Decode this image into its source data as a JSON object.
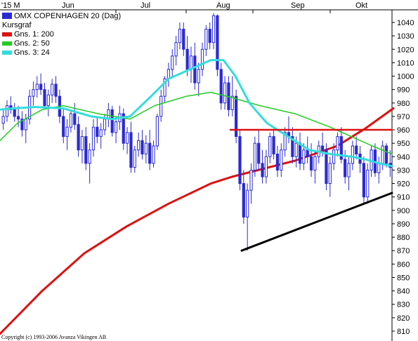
{
  "chart_data": {
    "type": "candlestick",
    "instrument": "OMX COPENHAGEN 20 (Dag)",
    "x_month_labels": [
      "'15 M",
      "Jun",
      "Jul",
      "Aug",
      "Sep",
      "Okt"
    ],
    "y_ticks": [
      810,
      820,
      830,
      840,
      850,
      860,
      870,
      880,
      890,
      900,
      910,
      920,
      930,
      940,
      950,
      960,
      970,
      980,
      990,
      1000,
      1010,
      1020,
      1030,
      1040
    ],
    "ylim": [
      805,
      1047
    ],
    "grid": false,
    "legend_placement": "top-left",
    "legend": [
      {
        "label": "OMX COPENHAGEN 20 (Dag)",
        "color": "#2a2ad2",
        "kind": "box"
      },
      {
        "label": "Kursgraf",
        "color": "",
        "kind": "text"
      },
      {
        "label": "Gns. 1: 200",
        "color": "#dd1111",
        "kind": "line"
      },
      {
        "label": "Gns. 2: 50",
        "color": "#22cc22",
        "kind": "line"
      },
      {
        "label": "Gns. 3: 24",
        "color": "#33dddd",
        "kind": "line"
      }
    ],
    "colors": {
      "candle": "#2a2ad2",
      "ma200": "#dd1111",
      "ma50": "#22cc22",
      "ma24": "#33dddd",
      "trendline": "#000000",
      "resistance": "#dd1111"
    },
    "candles": [
      [
        965,
        975,
        960,
        970
      ],
      [
        970,
        982,
        966,
        978
      ],
      [
        978,
        985,
        972,
        975
      ],
      [
        975,
        980,
        966,
        970
      ],
      [
        970,
        978,
        962,
        968
      ],
      [
        968,
        974,
        955,
        960
      ],
      [
        960,
        972,
        950,
        968
      ],
      [
        968,
        990,
        964,
        985
      ],
      [
        985,
        996,
        978,
        990
      ],
      [
        990,
        1000,
        984,
        994
      ],
      [
        994,
        1002,
        986,
        990
      ],
      [
        990,
        995,
        975,
        978
      ],
      [
        978,
        990,
        970,
        986
      ],
      [
        986,
        998,
        980,
        994
      ],
      [
        994,
        1000,
        980,
        985
      ],
      [
        985,
        990,
        965,
        970
      ],
      [
        970,
        976,
        950,
        955
      ],
      [
        955,
        968,
        945,
        962
      ],
      [
        962,
        975,
        958,
        972
      ],
      [
        972,
        980,
        960,
        964
      ],
      [
        964,
        970,
        940,
        945
      ],
      [
        945,
        960,
        935,
        955
      ],
      [
        955,
        962,
        930,
        935
      ],
      [
        935,
        950,
        920,
        945
      ],
      [
        945,
        968,
        940,
        962
      ],
      [
        962,
        970,
        950,
        955
      ],
      [
        955,
        965,
        946,
        960
      ],
      [
        960,
        972,
        956,
        968
      ],
      [
        968,
        980,
        962,
        975
      ],
      [
        975,
        978,
        955,
        958
      ],
      [
        958,
        970,
        950,
        966
      ],
      [
        966,
        978,
        960,
        972
      ],
      [
        972,
        976,
        945,
        950
      ],
      [
        950,
        962,
        942,
        958
      ],
      [
        958,
        966,
        928,
        932
      ],
      [
        932,
        948,
        928,
        945
      ],
      [
        945,
        958,
        940,
        952
      ],
      [
        952,
        960,
        938,
        942
      ],
      [
        942,
        956,
        935,
        950
      ],
      [
        950,
        960,
        930,
        935
      ],
      [
        935,
        952,
        932,
        948
      ],
      [
        948,
        972,
        945,
        970
      ],
      [
        970,
        990,
        966,
        985
      ],
      [
        985,
        1000,
        980,
        998
      ],
      [
        998,
        1010,
        992,
        1005
      ],
      [
        1005,
        1020,
        1000,
        1015
      ],
      [
        1015,
        1030,
        1008,
        1025
      ],
      [
        1025,
        1040,
        1020,
        1035
      ],
      [
        1035,
        1040,
        1015,
        1020
      ],
      [
        1020,
        1030,
        1000,
        1005
      ],
      [
        1005,
        1022,
        995,
        1015
      ],
      [
        1015,
        1025,
        990,
        995
      ],
      [
        995,
        1010,
        985,
        1005
      ],
      [
        1005,
        1025,
        1000,
        1020
      ],
      [
        1020,
        1038,
        1015,
        1035
      ],
      [
        1035,
        1040,
        1020,
        1025
      ],
      [
        1025,
        1047,
        1020,
        1045
      ],
      [
        1045,
        1046,
        1000,
        1005
      ],
      [
        1005,
        1010,
        975,
        980
      ],
      [
        980,
        1000,
        975,
        995
      ],
      [
        995,
        1000,
        970,
        975
      ],
      [
        975,
        1000,
        970,
        985
      ],
      [
        985,
        990,
        950,
        955
      ],
      [
        955,
        960,
        915,
        920
      ],
      [
        920,
        930,
        890,
        895
      ],
      [
        895,
        920,
        870,
        915
      ],
      [
        915,
        935,
        905,
        930
      ],
      [
        930,
        955,
        925,
        950
      ],
      [
        950,
        960,
        930,
        935
      ],
      [
        935,
        945,
        920,
        925
      ],
      [
        925,
        945,
        920,
        940
      ],
      [
        940,
        958,
        935,
        955
      ],
      [
        955,
        960,
        938,
        942
      ],
      [
        942,
        948,
        925,
        930
      ],
      [
        930,
        950,
        925,
        945
      ],
      [
        945,
        962,
        940,
        958
      ],
      [
        958,
        970,
        950,
        955
      ],
      [
        955,
        962,
        935,
        940
      ],
      [
        940,
        955,
        932,
        950
      ],
      [
        950,
        958,
        930,
        935
      ],
      [
        935,
        950,
        930,
        945
      ],
      [
        945,
        955,
        935,
        940
      ],
      [
        940,
        950,
        925,
        930
      ],
      [
        930,
        945,
        920,
        940
      ],
      [
        940,
        952,
        935,
        948
      ],
      [
        948,
        958,
        940,
        945
      ],
      [
        945,
        950,
        915,
        920
      ],
      [
        920,
        940,
        910,
        935
      ],
      [
        935,
        950,
        930,
        945
      ],
      [
        945,
        958,
        940,
        955
      ],
      [
        955,
        962,
        935,
        938
      ],
      [
        938,
        945,
        920,
        925
      ],
      [
        925,
        940,
        915,
        935
      ],
      [
        935,
        952,
        930,
        948
      ],
      [
        948,
        955,
        938,
        942
      ],
      [
        942,
        948,
        928,
        935
      ],
      [
        935,
        940,
        905,
        910
      ],
      [
        910,
        935,
        905,
        930
      ],
      [
        930,
        948,
        925,
        945
      ],
      [
        945,
        950,
        925,
        928
      ],
      [
        928,
        940,
        920,
        935
      ],
      [
        935,
        952,
        930,
        948
      ],
      [
        948,
        950,
        932,
        935
      ],
      [
        935,
        945,
        925,
        932
      ]
    ],
    "moving_averages": {
      "ma200": [
        [
          0,
          808
        ],
        [
          60,
          840
        ],
        [
          120,
          868
        ],
        [
          180,
          888
        ],
        [
          240,
          905
        ],
        [
          300,
          920
        ],
        [
          330,
          925
        ],
        [
          420,
          937
        ],
        [
          480,
          948
        ],
        [
          520,
          961
        ],
        [
          560,
          976
        ]
      ],
      "ma50": [
        [
          0,
          952
        ],
        [
          25,
          965
        ],
        [
          60,
          975
        ],
        [
          90,
          978
        ],
        [
          140,
          972
        ],
        [
          185,
          968
        ],
        [
          220,
          978
        ],
        [
          265,
          985
        ],
        [
          300,
          988
        ],
        [
          330,
          984
        ],
        [
          370,
          978
        ],
        [
          420,
          972
        ],
        [
          470,
          962
        ],
        [
          500,
          955
        ],
        [
          530,
          948
        ],
        [
          558,
          942
        ]
      ],
      "ma24": [
        [
          0,
          975
        ],
        [
          20,
          976
        ],
        [
          50,
          977
        ],
        [
          90,
          976
        ],
        [
          130,
          970
        ],
        [
          160,
          968
        ],
        [
          185,
          970
        ],
        [
          215,
          985
        ],
        [
          240,
          998
        ],
        [
          270,
          1005
        ],
        [
          300,
          1012
        ],
        [
          318,
          1012
        ],
        [
          335,
          1000
        ],
        [
          355,
          980
        ],
        [
          380,
          965
        ],
        [
          410,
          955
        ],
        [
          440,
          945
        ],
        [
          470,
          942
        ],
        [
          500,
          940
        ],
        [
          520,
          938
        ],
        [
          540,
          935
        ],
        [
          558,
          933
        ]
      ]
    },
    "trendline": [
      [
        344,
        870
      ],
      [
        558,
        913
      ]
    ],
    "resistance_line": [
      [
        328,
        960
      ],
      [
        558,
        960
      ]
    ],
    "copyright": "Copyright (c) 1993-2006 Avanza Vikingen AB"
  }
}
